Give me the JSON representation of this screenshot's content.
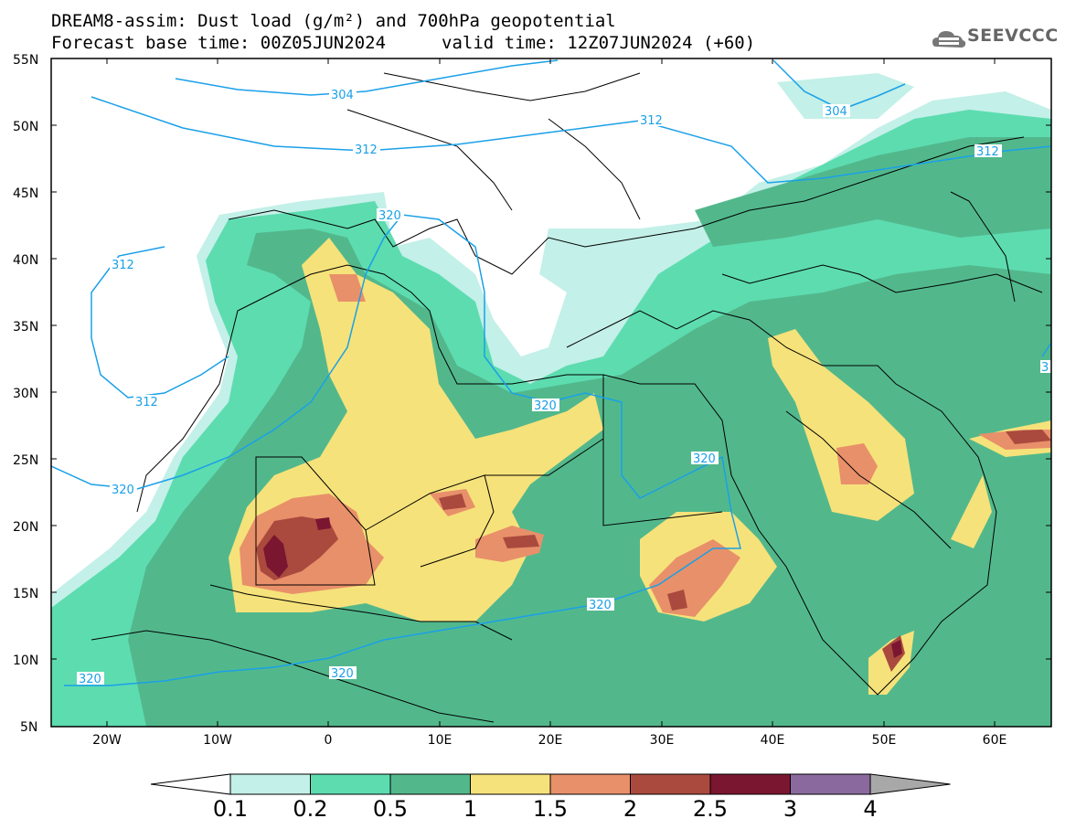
{
  "title": {
    "line1": "DREAM8-assim: Dust load (g/m²) and 700hPa geopotential",
    "line2": "Forecast base time: 00Z05JUN2024",
    "valid": "valid time: 12Z07JUN2024 (+60)"
  },
  "logo": {
    "text": "SEEVCCC",
    "icon": "cloud-icon"
  },
  "axes": {
    "lat_labels": [
      "55N",
      "50N",
      "45N",
      "40N",
      "35N",
      "30N",
      "25N",
      "20N",
      "15N",
      "10N",
      "5N"
    ],
    "lon_labels": [
      "20W",
      "10W",
      "0",
      "10E",
      "20E",
      "30E",
      "40E",
      "50E",
      "60E"
    ]
  },
  "contour_labels": [
    "304",
    "304",
    "312",
    "312",
    "312",
    "312",
    "312",
    "320",
    "320",
    "320",
    "320",
    "320",
    "320",
    "320",
    "3"
  ],
  "colorbar": {
    "ticks": [
      "0.1",
      "0.2",
      "0.5",
      "1",
      "1.5",
      "2",
      "2.5",
      "3",
      "4"
    ],
    "colors": [
      "#c3f0e8",
      "#5ddcb0",
      "#52b88c",
      "#f6e27a",
      "#e8906a",
      "#aa4a3e",
      "#7a1630",
      "#8a6a9e",
      "#a8a8a8"
    ]
  },
  "palette": {
    "ocean": "#ffffff",
    "contour": "#1aa0e8",
    "border": "#000000"
  }
}
